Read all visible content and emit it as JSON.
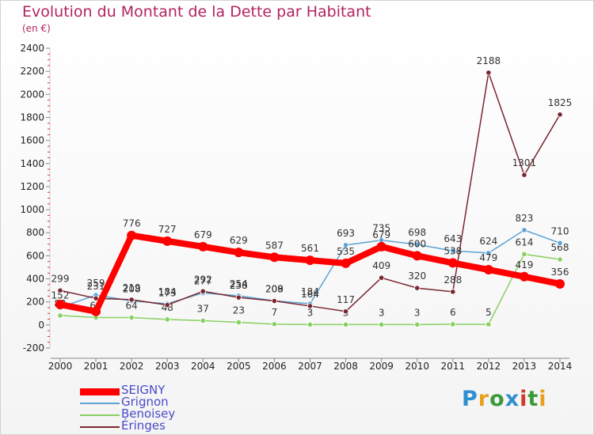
{
  "header": {
    "title": "Evolution du Montant de la Dette par Habitant",
    "unit": "(en €)"
  },
  "logo": {
    "text": "Proxiti",
    "colors": [
      "#2f8fd0",
      "#e8a020",
      "#3a9a3a",
      "#2f8fd0",
      "#d03a2a",
      "#3a9a3a",
      "#e8a020"
    ]
  },
  "chart_data": {
    "type": "line",
    "title": "Evolution du Montant de la Dette par Habitant",
    "ylabel": "(en €)",
    "xlabel": "",
    "ylim": [
      -200,
      2400
    ],
    "yticks": [
      -200,
      0,
      200,
      400,
      600,
      800,
      1000,
      1200,
      1400,
      1600,
      1800,
      2000,
      2200,
      2400
    ],
    "categories": [
      "2000",
      "2001",
      "2002",
      "2003",
      "2004",
      "2005",
      "2006",
      "2007",
      "2008",
      "2009",
      "2010",
      "2011",
      "2012",
      "2013",
      "2014"
    ],
    "grid": false,
    "legend_position": "bottom-left",
    "series": [
      {
        "name": "Benoisey",
        "color": "#88d060",
        "values": [
          82,
          64,
          64,
          48,
          37,
          23,
          7,
          3,
          3,
          3,
          3,
          6,
          5,
          614,
          568
        ],
        "labels": [
          "82",
          "64",
          "64",
          "48",
          "37",
          "23",
          "7",
          "3",
          "3",
          "3",
          "3",
          "6",
          "5",
          "614",
          "568"
        ]
      },
      {
        "name": "Grignon",
        "color": "#5da3d4",
        "values": [
          152,
          259,
          208,
          184,
          277,
          254,
          209,
          184,
          693,
          735,
          698,
          643,
          624,
          823,
          710
        ],
        "labels": [
          "152",
          "259",
          "208",
          "184",
          "277",
          "254",
          "209",
          "184",
          "693",
          "735",
          "698",
          "643",
          "624",
          "823",
          "710"
        ]
      },
      {
        "name": "Éringes",
        "color": "#7a2630",
        "values": [
          299,
          231,
          219,
          173,
          292,
          238,
          208,
          164,
          117,
          409,
          320,
          288,
          2188,
          1301,
          1825
        ],
        "labels": [
          "299",
          "231",
          "219",
          "173",
          "292",
          "238",
          "208",
          "164",
          "117",
          "409",
          "320",
          "288",
          "2188",
          "1301",
          "1825"
        ]
      },
      {
        "name": "SEIGNY",
        "color": "#ff0000",
        "values": [
          177,
          117,
          776,
          727,
          679,
          629,
          587,
          561,
          535,
          679,
          600,
          538,
          479,
          419,
          356
        ],
        "labels": [
          "",
          "",
          "776",
          "727",
          "679",
          "629",
          "587",
          "561",
          "535",
          "679",
          "600",
          "538",
          "479",
          "419",
          "356"
        ]
      }
    ]
  },
  "legend": [
    {
      "name": "SEIGNY",
      "color": "#ff0000"
    },
    {
      "name": "Grignon",
      "color": "#5da3d4"
    },
    {
      "name": "Benoisey",
      "color": "#88d060"
    },
    {
      "name": "Éringes",
      "color": "#7a2630"
    }
  ]
}
